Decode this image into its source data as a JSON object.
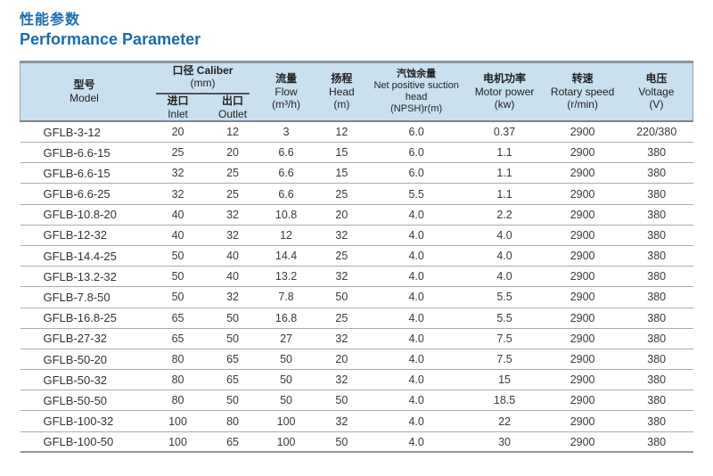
{
  "page": {
    "title_zh": "性能参数",
    "title_en": "Performance Parameter"
  },
  "colors": {
    "accent": "#1c6bab",
    "header_bg": "#c9e0f1",
    "border_dark": "#8d949c",
    "border_mid": "#7d848d",
    "border_light": "#9aa5ae",
    "row_line": "#ababab",
    "text": "#3a3a3a"
  },
  "table": {
    "header": {
      "model": {
        "zh": "型号",
        "en": "Model"
      },
      "caliber": {
        "zh_en": "口径 Caliber",
        "unit": "(mm)"
      },
      "inlet": {
        "zh": "进口",
        "en": "Inlet"
      },
      "outlet": {
        "zh": "出口",
        "en": "Outlet"
      },
      "flow": {
        "zh": "流量",
        "en": "Flow",
        "unit": "(m³/h)"
      },
      "head": {
        "zh": "扬程",
        "en": "Head",
        "unit": "(m)"
      },
      "npsh": {
        "zh": "汽蚀余量",
        "en": "Net positive suction head",
        "unit": "(NPSH)r(m)"
      },
      "motor": {
        "zh": "电机功率",
        "en": "Motor power",
        "unit": "(kw)"
      },
      "rotary": {
        "zh": "转速",
        "en": "Rotary speed",
        "unit": "(r/min)"
      },
      "voltage": {
        "zh": "电压",
        "en": "Voltage",
        "unit": "(V)"
      }
    },
    "column_keys": [
      "model",
      "inlet",
      "outlet",
      "flow",
      "head",
      "npsh",
      "motor",
      "rotary",
      "voltage"
    ],
    "rows": [
      [
        "GFLB-3-12",
        "20",
        "12",
        "3",
        "12",
        "6.0",
        "0.37",
        "2900",
        "220/380"
      ],
      [
        "GFLB-6.6-15",
        "25",
        "20",
        "6.6",
        "15",
        "6.0",
        "1.1",
        "2900",
        "380"
      ],
      [
        "GFLB-6.6-15",
        "32",
        "25",
        "6.6",
        "15",
        "6.0",
        "1.1",
        "2900",
        "380"
      ],
      [
        "GFLB-6.6-25",
        "32",
        "25",
        "6.6",
        "25",
        "5.5",
        "1.1",
        "2900",
        "380"
      ],
      [
        "GFLB-10.8-20",
        "40",
        "32",
        "10.8",
        "20",
        "4.0",
        "2.2",
        "2900",
        "380"
      ],
      [
        "GFLB-12-32",
        "40",
        "32",
        "12",
        "32",
        "4.0",
        "4.0",
        "2900",
        "380"
      ],
      [
        "GFLB-14.4-25",
        "50",
        "40",
        "14.4",
        "25",
        "4.0",
        "4.0",
        "2900",
        "380"
      ],
      [
        "GFLB-13.2-32",
        "50",
        "40",
        "13.2",
        "32",
        "4.0",
        "4.0",
        "2900",
        "380"
      ],
      [
        "GFLB-7.8-50",
        "50",
        "32",
        "7.8",
        "50",
        "4.0",
        "5.5",
        "2900",
        "380"
      ],
      [
        "GFLB-16.8-25",
        "65",
        "50",
        "16.8",
        "25",
        "4.0",
        "5.5",
        "2900",
        "380"
      ],
      [
        "GFLB-27-32",
        "65",
        "50",
        "27",
        "32",
        "4.0",
        "7.5",
        "2900",
        "380"
      ],
      [
        "GFLB-50-20",
        "80",
        "65",
        "50",
        "20",
        "4.0",
        "7.5",
        "2900",
        "380"
      ],
      [
        "GFLB-50-32",
        "80",
        "65",
        "50",
        "32",
        "4.0",
        "15",
        "2900",
        "380"
      ],
      [
        "GFLB-50-50",
        "80",
        "50",
        "50",
        "50",
        "4.0",
        "18.5",
        "2900",
        "380"
      ],
      [
        "GFLB-100-32",
        "100",
        "80",
        "100",
        "32",
        "4.0",
        "22",
        "2900",
        "380"
      ],
      [
        "GFLB-100-50",
        "100",
        "65",
        "100",
        "50",
        "4.0",
        "30",
        "2900",
        "380"
      ]
    ]
  }
}
